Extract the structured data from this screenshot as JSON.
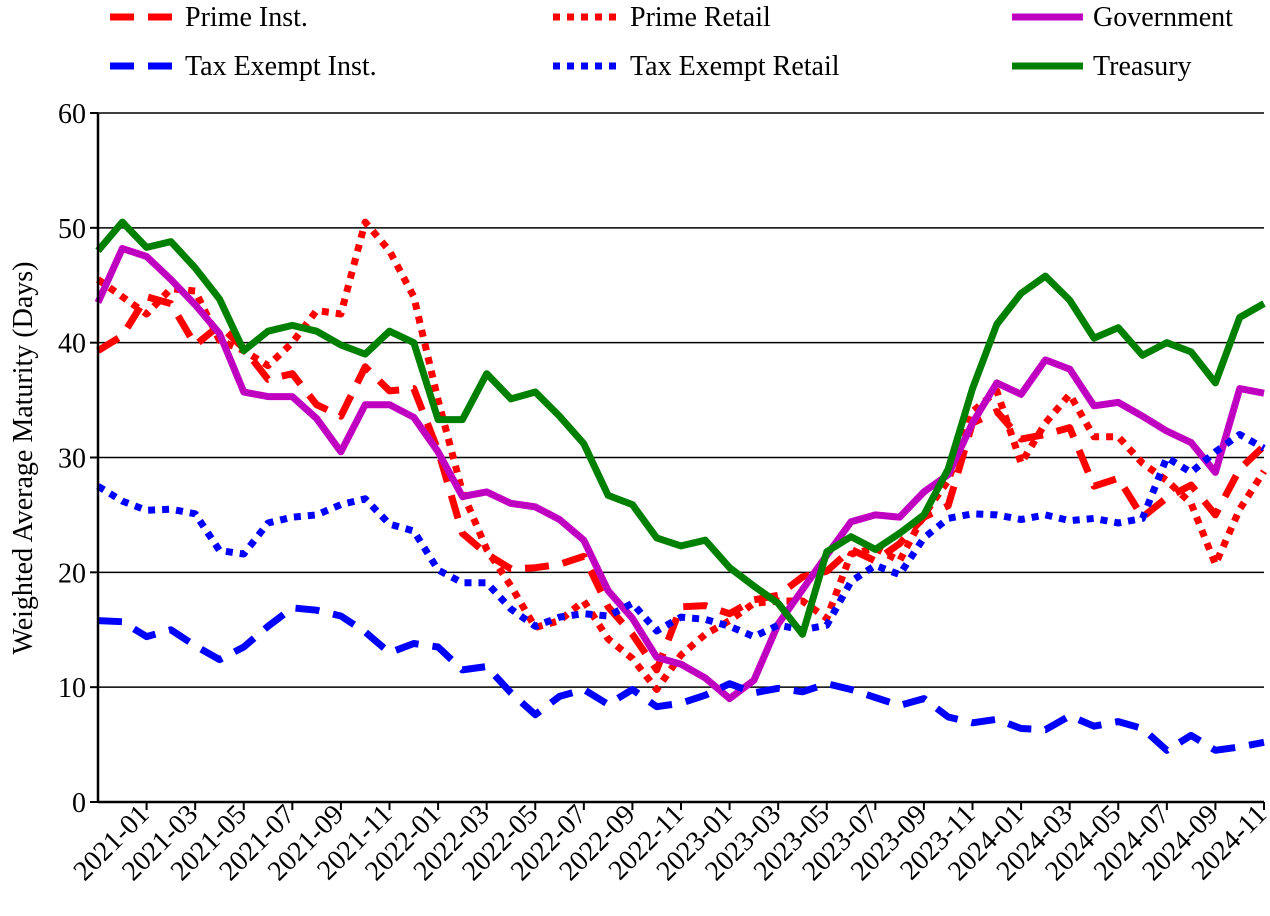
{
  "chart_data": {
    "type": "line",
    "ylabel": "Weighted Average Maturity (Days)",
    "categories": [
      null,
      null,
      "2021-01",
      null,
      "2021-03",
      null,
      "2021-05",
      null,
      "2021-07",
      null,
      "2021-09",
      null,
      "2021-11",
      null,
      "2022-01",
      null,
      "2022-03",
      null,
      "2022-05",
      null,
      "2022-07",
      null,
      "2022-09",
      null,
      "2022-11",
      null,
      "2023-01",
      null,
      "2023-03",
      null,
      "2023-05",
      null,
      "2023-07",
      null,
      "2023-09",
      null,
      "2023-11",
      null,
      "2024-01",
      null,
      "2024-03",
      null,
      "2024-05",
      null,
      "2024-07",
      null,
      "2024-09",
      null,
      "2024-11"
    ],
    "ylim": [
      0,
      60
    ],
    "yticks": [
      0,
      10,
      20,
      30,
      40,
      50,
      60
    ],
    "grid": true,
    "series": [
      {
        "name": "Prime Inst.",
        "color": "#ff0000",
        "style": "dashed",
        "values": [
          39.3,
          40.6,
          44,
          43.4,
          39.8,
          41.5,
          39.5,
          36.8,
          37.3,
          34.6,
          33.6,
          37.9,
          35.8,
          36,
          30.6,
          23.4,
          21.6,
          20.3,
          20.4,
          20.7,
          21.4,
          17,
          14.6,
          11.5,
          17,
          17.1,
          16.4,
          17.6,
          18,
          19.6,
          20.1,
          22,
          21,
          22.5,
          24.8,
          25.8,
          33,
          34,
          31.6,
          32,
          32.6,
          27.5,
          28.2,
          24.8,
          26.5,
          27.6,
          25,
          29,
          31
        ]
      },
      {
        "name": "Prime Retail",
        "color": "#ff0000",
        "style": "dotted",
        "values": [
          45.5,
          44,
          42.5,
          44.7,
          44.5,
          40.2,
          39.3,
          38,
          40,
          42.8,
          42.5,
          50.5,
          48,
          44,
          35,
          27,
          22,
          18.8,
          15.2,
          15.8,
          17.5,
          14.2,
          12.5,
          9.8,
          12.8,
          14.6,
          15.8,
          17.3,
          17.5,
          17.5,
          16,
          21.6,
          22.1,
          21,
          25,
          28,
          34,
          35.8,
          29.5,
          33,
          35.5,
          31.8,
          31.8,
          29.5,
          28,
          26,
          20.7,
          25.5,
          28.8
        ]
      },
      {
        "name": "Government",
        "color": "#c000c0",
        "style": "solid",
        "values": [
          43.5,
          48.2,
          47.5,
          45.5,
          43.3,
          40.8,
          35.7,
          35.3,
          35.3,
          33.4,
          30.5,
          34.6,
          34.6,
          33.5,
          30.5,
          26.6,
          27,
          26,
          25.7,
          24.6,
          22.8,
          18.4,
          16,
          12.6,
          12,
          10.8,
          9,
          10.6,
          15.5,
          18.5,
          21.5,
          24.4,
          25,
          24.8,
          27,
          28.5,
          33,
          36.5,
          35.5,
          38.5,
          37.7,
          34.5,
          34.8,
          33.6,
          32.3,
          31.3,
          28.7,
          36,
          35.6
        ]
      },
      {
        "name": "Tax Exempt Inst.",
        "color": "#0000ff",
        "style": "dashed",
        "values": [
          15.8,
          15.7,
          14.4,
          15,
          13.6,
          12.4,
          13.5,
          15.3,
          16.9,
          16.7,
          16.2,
          14.8,
          13,
          13.8,
          13.5,
          11.5,
          11.8,
          9.5,
          7.6,
          9.2,
          9.8,
          8.5,
          9.8,
          8.3,
          8.6,
          9.3,
          10.3,
          9.5,
          9.9,
          9.6,
          10.3,
          9.8,
          9.1,
          8.4,
          9,
          7.4,
          6.9,
          7.2,
          6.4,
          6.3,
          7.5,
          6.6,
          7,
          6.4,
          4.5,
          5.8,
          4.5,
          4.8,
          5.2
        ]
      },
      {
        "name": "Tax Exempt Retail",
        "color": "#0000ff",
        "style": "dotted",
        "values": [
          27.5,
          26.2,
          25.4,
          25.5,
          25.1,
          21.9,
          21.6,
          24.3,
          24.8,
          25,
          25.9,
          26.4,
          24.2,
          23.6,
          20.2,
          19.1,
          19.1,
          16.8,
          15.3,
          16.1,
          16.4,
          16.2,
          17.3,
          14.9,
          16.1,
          15.9,
          15.3,
          14.4,
          15.4,
          15,
          15.4,
          19.2,
          20.6,
          19.8,
          23,
          24.7,
          25.1,
          25,
          24.6,
          25,
          24.5,
          24.7,
          24.3,
          24.7,
          30,
          28.7,
          30.5,
          32,
          30.8
        ]
      },
      {
        "name": "Treasury",
        "color": "#008000",
        "style": "solid",
        "values": [
          48,
          50.5,
          48.3,
          48.8,
          46.5,
          43.8,
          39.3,
          41,
          41.5,
          41,
          39.8,
          39,
          41,
          40,
          33.3,
          33.3,
          37.3,
          35.1,
          35.7,
          33.6,
          31.2,
          26.7,
          25.9,
          23,
          22.3,
          22.8,
          20.4,
          18.8,
          17.3,
          14.6,
          21.8,
          23.1,
          22,
          23.4,
          25,
          29,
          36,
          41.6,
          44.3,
          45.8,
          43.7,
          40.4,
          41.3,
          38.9,
          40,
          39.2,
          36.5,
          42.2,
          43.4
        ]
      }
    ]
  }
}
